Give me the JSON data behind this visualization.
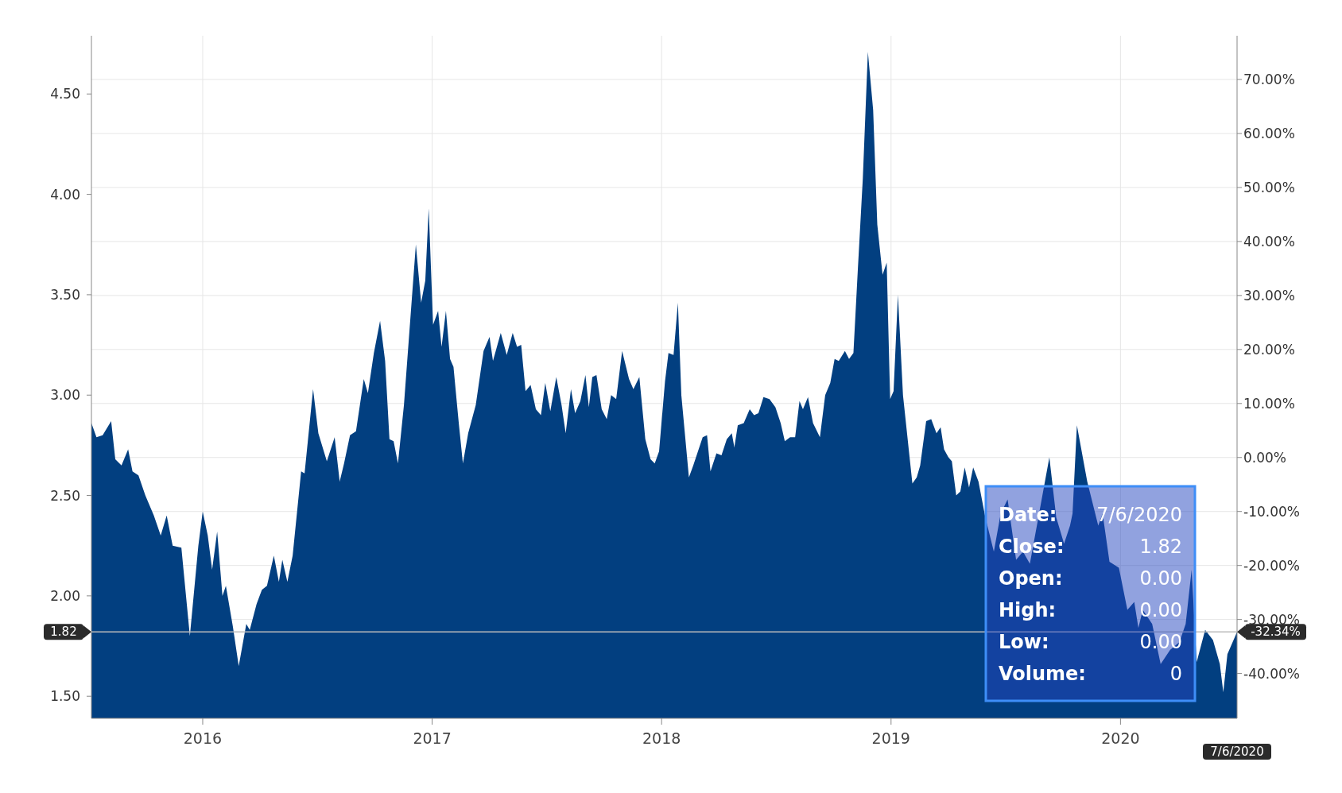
{
  "chart_data": {
    "type": "area",
    "x": [
      2015.515,
      2015.537,
      2015.564,
      2015.601,
      2015.619,
      2015.646,
      2015.675,
      2015.694,
      2015.72,
      2015.75,
      2015.787,
      2015.817,
      2015.843,
      2015.869,
      2015.907,
      2015.944,
      2015.981,
      2016.0,
      2016.022,
      2016.041,
      2016.063,
      2016.086,
      2016.101,
      2016.131,
      2016.157,
      2016.19,
      2016.205,
      2016.235,
      2016.258,
      2016.28,
      2016.31,
      2016.332,
      2016.347,
      2016.369,
      2016.392,
      2016.429,
      2016.444,
      2016.481,
      2016.504,
      2016.541,
      2016.575,
      2016.597,
      2016.616,
      2016.642,
      2016.668,
      2016.702,
      2016.72,
      2016.746,
      2016.773,
      2016.795,
      2016.814,
      2016.832,
      2016.851,
      2016.877,
      2016.929,
      2016.952,
      2016.97,
      2016.985,
      2017.004,
      2017.026,
      2017.041,
      2017.06,
      2017.078,
      2017.093,
      2017.116,
      2017.134,
      2017.157,
      2017.19,
      2017.224,
      2017.25,
      2017.265,
      2017.299,
      2017.325,
      2017.351,
      2017.37,
      2017.388,
      2017.407,
      2017.429,
      2017.452,
      2017.474,
      2017.493,
      2017.515,
      2017.541,
      2017.564,
      2017.582,
      2017.605,
      2017.623,
      2017.646,
      2017.668,
      2017.683,
      2017.698,
      2017.716,
      2017.739,
      2017.761,
      2017.78,
      2017.802,
      2017.828,
      2017.858,
      2017.877,
      2017.903,
      2017.929,
      2017.952,
      2017.97,
      2017.989,
      2018.015,
      2018.03,
      2018.052,
      2018.071,
      2018.086,
      2018.119,
      2018.138,
      2018.179,
      2018.198,
      2018.213,
      2018.239,
      2018.261,
      2018.284,
      2018.306,
      2018.317,
      2018.332,
      2018.358,
      2018.384,
      2018.403,
      2018.422,
      2018.444,
      2018.47,
      2018.496,
      2018.519,
      2018.537,
      2018.56,
      2018.582,
      2018.601,
      2018.616,
      2018.638,
      2018.66,
      2018.69,
      2018.713,
      2018.735,
      2018.754,
      2018.772,
      2018.799,
      2018.817,
      2018.836,
      2018.855,
      2018.877,
      2018.899,
      2018.922,
      2018.94,
      2018.963,
      2018.981,
      2018.996,
      2019.011,
      2019.03,
      2019.052,
      2019.078,
      2019.093,
      2019.112,
      2019.127,
      2019.153,
      2019.175,
      2019.198,
      2019.216,
      2019.231,
      2019.25,
      2019.265,
      2019.284,
      2019.302,
      2019.321,
      2019.34,
      2019.358,
      2019.381,
      2019.411,
      2019.448,
      2019.478,
      2019.508,
      2019.545,
      2019.575,
      2019.605,
      2019.642,
      2019.69,
      2019.72,
      2019.754,
      2019.78,
      2019.791,
      2019.81,
      2019.855,
      2019.903,
      2019.922,
      2019.952,
      2019.993,
      2020.03,
      2020.06,
      2020.078,
      2020.097,
      2020.138,
      2020.175,
      2020.216,
      2020.257,
      2020.284,
      2020.31,
      2020.332,
      2020.369,
      2020.403,
      2020.433,
      2020.448,
      2020.466,
      2020.508
    ],
    "series": [
      {
        "color": "#023f80",
        "values": [
          2.86,
          2.79,
          2.8,
          2.87,
          2.68,
          2.65,
          2.73,
          2.62,
          2.6,
          2.5,
          2.4,
          2.3,
          2.4,
          2.25,
          2.24,
          1.8,
          2.25,
          2.42,
          2.3,
          2.13,
          2.32,
          2.0,
          2.05,
          1.85,
          1.65,
          1.86,
          1.83,
          1.96,
          2.03,
          2.05,
          2.2,
          2.07,
          2.18,
          2.07,
          2.2,
          2.62,
          2.61,
          3.03,
          2.81,
          2.67,
          2.79,
          2.57,
          2.66,
          2.8,
          2.82,
          3.08,
          3.01,
          3.21,
          3.37,
          3.17,
          2.78,
          2.77,
          2.66,
          2.95,
          3.75,
          3.46,
          3.57,
          3.93,
          3.35,
          3.42,
          3.24,
          3.42,
          3.18,
          3.14,
          2.86,
          2.66,
          2.81,
          2.95,
          3.22,
          3.29,
          3.17,
          3.31,
          3.2,
          3.31,
          3.24,
          3.25,
          3.02,
          3.05,
          2.93,
          2.9,
          3.06,
          2.92,
          3.09,
          2.95,
          2.81,
          3.03,
          2.91,
          2.97,
          3.1,
          2.94,
          3.09,
          3.1,
          2.93,
          2.88,
          3.0,
          2.98,
          3.22,
          3.08,
          3.03,
          3.09,
          2.78,
          2.68,
          2.66,
          2.72,
          3.07,
          3.21,
          3.2,
          3.46,
          3.0,
          2.59,
          2.65,
          2.79,
          2.8,
          2.62,
          2.71,
          2.7,
          2.78,
          2.81,
          2.74,
          2.85,
          2.86,
          2.93,
          2.9,
          2.91,
          2.99,
          2.98,
          2.94,
          2.86,
          2.77,
          2.79,
          2.79,
          2.97,
          2.93,
          2.99,
          2.86,
          2.79,
          3.0,
          3.06,
          3.18,
          3.17,
          3.22,
          3.18,
          3.21,
          3.62,
          4.08,
          4.71,
          4.42,
          3.85,
          3.6,
          3.66,
          2.98,
          3.02,
          3.5,
          3.0,
          2.72,
          2.56,
          2.59,
          2.65,
          2.87,
          2.88,
          2.81,
          2.84,
          2.73,
          2.69,
          2.67,
          2.5,
          2.52,
          2.64,
          2.54,
          2.64,
          2.57,
          2.39,
          2.22,
          2.41,
          2.48,
          2.18,
          2.22,
          2.16,
          2.39,
          2.69,
          2.39,
          2.26,
          2.35,
          2.41,
          2.85,
          2.57,
          2.35,
          2.41,
          2.17,
          2.14,
          1.93,
          1.97,
          1.84,
          1.93,
          1.86,
          1.66,
          1.73,
          1.77,
          1.86,
          2.13,
          1.67,
          1.83,
          1.78,
          1.66,
          1.52,
          1.71,
          1.82
        ]
      }
    ],
    "xlim": [
      2015.515,
      2020.508
    ],
    "xticks": [
      2016,
      2017,
      2018,
      2019,
      2020
    ],
    "ylim": [
      1.39,
      4.79
    ],
    "yticks": [
      {
        "value": 1.5,
        "label": "1.50"
      },
      {
        "value": 2,
        "label": "2.00"
      },
      {
        "value": 2.5,
        "label": "2.50"
      },
      {
        "value": 3,
        "label": "3.00"
      },
      {
        "value": 3.5,
        "label": "3.50"
      },
      {
        "value": 4,
        "label": "4.00"
      },
      {
        "value": 4.5,
        "label": "4.50"
      }
    ],
    "y2lim": [
      -48.3,
      78.1
    ],
    "y2ticks": [
      {
        "value": -40,
        "label": "-40.00%"
      },
      {
        "value": -30,
        "label": "-30.00%"
      },
      {
        "value": -20,
        "label": "-20.00%"
      },
      {
        "value": -10,
        "label": "-10.00%"
      },
      {
        "value": 0,
        "label": "0.00%"
      },
      {
        "value": 10,
        "label": "10.00%"
      },
      {
        "value": 20,
        "label": "20.00%"
      },
      {
        "value": 30,
        "label": "30.00%"
      },
      {
        "value": 40,
        "label": "40.00%"
      },
      {
        "value": 50,
        "label": "50.00%"
      },
      {
        "value": 60,
        "label": "60.00%"
      },
      {
        "value": 70,
        "label": "70.00%"
      }
    ],
    "grid": true,
    "ref_lines": [
      {
        "axis": "y",
        "value": 1.82,
        "label": "1.82",
        "color": "#bbbbbb"
      }
    ],
    "annotations": [
      "7/6/2020",
      "-32.34%",
      "Date:",
      "7/6/2020",
      "Close:",
      "1.82",
      "Open:",
      "0.00",
      "High:",
      "0.00",
      "Low:",
      "0.00",
      "Volume:",
      "0"
    ]
  }
}
